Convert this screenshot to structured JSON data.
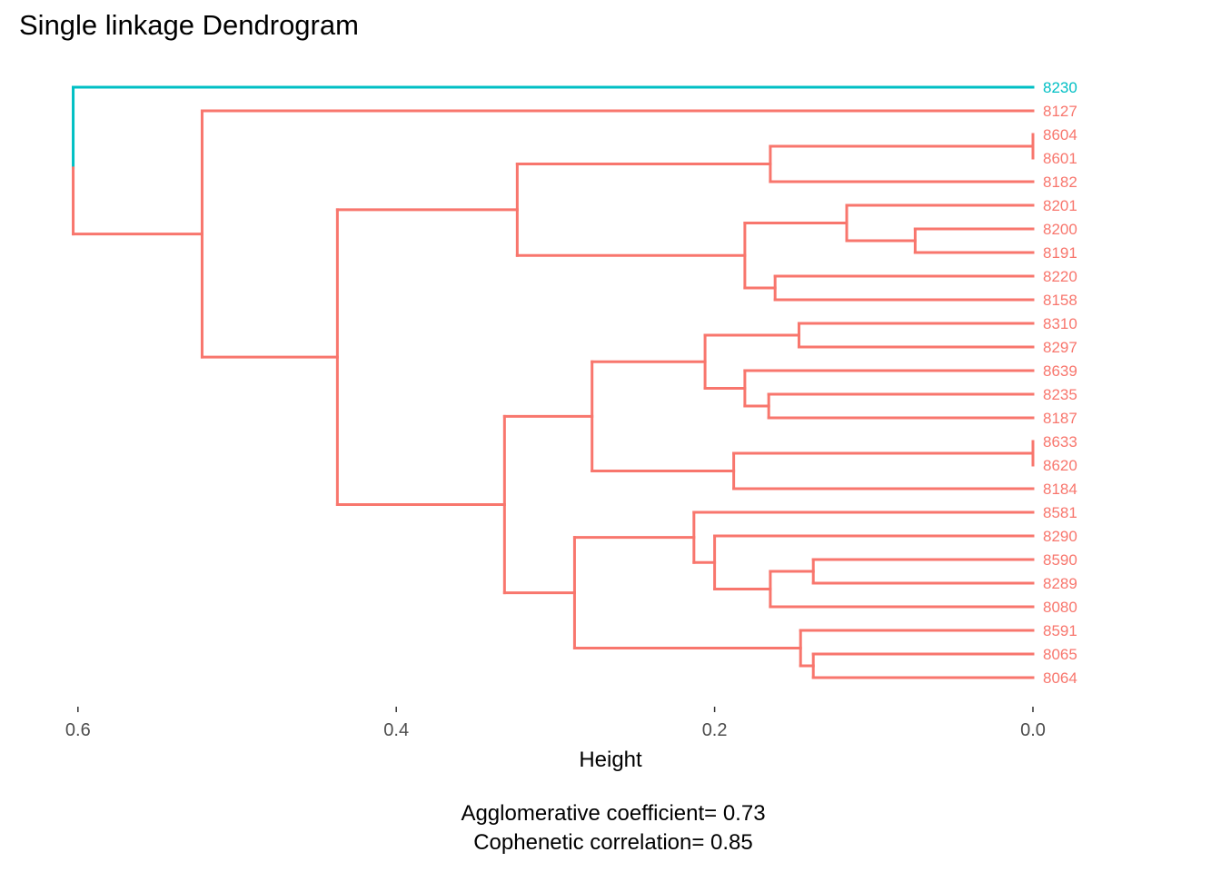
{
  "chart": {
    "title": "Single linkage Dendrogram",
    "xlabel": "Height",
    "caption_line1": "Agglomerative coefficient= 0.73",
    "caption_line2": "Cophenetic correlation= 0.85"
  },
  "chart_data": {
    "type": "dendrogram",
    "title": "Single linkage Dendrogram",
    "xlabel": "Height",
    "xlim": [
      0.61,
      0.0
    ],
    "x_ticks": [
      0.6,
      0.4,
      0.2,
      0.0
    ],
    "tick_labels": [
      "0.6",
      "0.4",
      "0.2",
      "0.0"
    ],
    "colors": {
      "cluster1": "#00BFC4",
      "cluster2": "#F8766D"
    },
    "leaves": [
      {
        "label": "8230",
        "cluster": 1
      },
      {
        "label": "8127",
        "cluster": 2
      },
      {
        "label": "8604",
        "cluster": 2
      },
      {
        "label": "8601",
        "cluster": 2
      },
      {
        "label": "8182",
        "cluster": 2
      },
      {
        "label": "8201",
        "cluster": 2
      },
      {
        "label": "8200",
        "cluster": 2
      },
      {
        "label": "8191",
        "cluster": 2
      },
      {
        "label": "8220",
        "cluster": 2
      },
      {
        "label": "8158",
        "cluster": 2
      },
      {
        "label": "8310",
        "cluster": 2
      },
      {
        "label": "8297",
        "cluster": 2
      },
      {
        "label": "8639",
        "cluster": 2
      },
      {
        "label": "8235",
        "cluster": 2
      },
      {
        "label": "8187",
        "cluster": 2
      },
      {
        "label": "8633",
        "cluster": 2
      },
      {
        "label": "8620",
        "cluster": 2
      },
      {
        "label": "8184",
        "cluster": 2
      },
      {
        "label": "8581",
        "cluster": 2
      },
      {
        "label": "8290",
        "cluster": 2
      },
      {
        "label": "8590",
        "cluster": 2
      },
      {
        "label": "8289",
        "cluster": 2
      },
      {
        "label": "8080",
        "cluster": 2
      },
      {
        "label": "8591",
        "cluster": 2
      },
      {
        "label": "8065",
        "cluster": 2
      },
      {
        "label": "8064",
        "cluster": 2
      }
    ],
    "merges": [
      {
        "id": "m1",
        "children": [
          "L2",
          "L3"
        ],
        "height": 0.0
      },
      {
        "id": "m2",
        "children": [
          "m1",
          "L4"
        ],
        "height": 0.165
      },
      {
        "id": "m3",
        "children": [
          "L6",
          "L7"
        ],
        "height": 0.074
      },
      {
        "id": "m4",
        "children": [
          "L5",
          "m3"
        ],
        "height": 0.117
      },
      {
        "id": "m5",
        "children": [
          "L8",
          "L9"
        ],
        "height": 0.162
      },
      {
        "id": "m6",
        "children": [
          "m4",
          "m5"
        ],
        "height": 0.181
      },
      {
        "id": "m7",
        "children": [
          "m2",
          "m6"
        ],
        "height": 0.324
      },
      {
        "id": "m8",
        "children": [
          "L10",
          "L11"
        ],
        "height": 0.147
      },
      {
        "id": "m9",
        "children": [
          "L13",
          "L14"
        ],
        "height": 0.166
      },
      {
        "id": "m10",
        "children": [
          "L12",
          "m9"
        ],
        "height": 0.181
      },
      {
        "id": "m11",
        "children": [
          "m8",
          "m10"
        ],
        "height": 0.206
      },
      {
        "id": "m12",
        "children": [
          "L15",
          "L16"
        ],
        "height": 0.0
      },
      {
        "id": "m13",
        "children": [
          "m12",
          "L17"
        ],
        "height": 0.188
      },
      {
        "id": "m14",
        "children": [
          "m11",
          "m13"
        ],
        "height": 0.277
      },
      {
        "id": "m15",
        "children": [
          "L20",
          "L21"
        ],
        "height": 0.138
      },
      {
        "id": "m16",
        "children": [
          "m15",
          "L22"
        ],
        "height": 0.165
      },
      {
        "id": "m17",
        "children": [
          "L19",
          "m16"
        ],
        "height": 0.2
      },
      {
        "id": "m18",
        "children": [
          "L18",
          "m17"
        ],
        "height": 0.213
      },
      {
        "id": "m19",
        "children": [
          "L24",
          "L25"
        ],
        "height": 0.138
      },
      {
        "id": "m20",
        "children": [
          "L23",
          "m19"
        ],
        "height": 0.146
      },
      {
        "id": "m21",
        "children": [
          "m18",
          "m20"
        ],
        "height": 0.288
      },
      {
        "id": "m22",
        "children": [
          "m14",
          "m21"
        ],
        "height": 0.332
      },
      {
        "id": "m23",
        "children": [
          "m7",
          "m22"
        ],
        "height": 0.437
      },
      {
        "id": "m24",
        "children": [
          "L1",
          "m23"
        ],
        "height": 0.522
      },
      {
        "id": "m25",
        "children": [
          "L0",
          "m24"
        ],
        "height": 0.603
      }
    ]
  }
}
